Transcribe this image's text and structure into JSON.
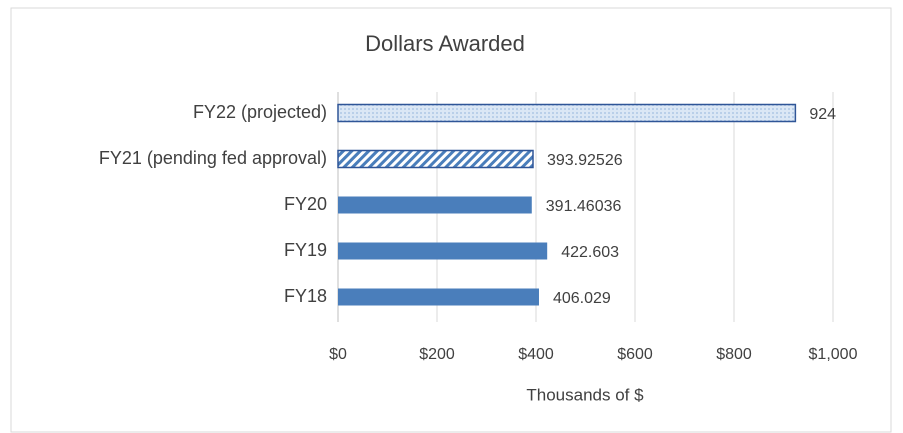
{
  "chart_data": {
    "type": "hbar",
    "title": "Dollars Awarded",
    "categories": [
      "FY22 (projected)",
      "FY21 (pending fed approval)",
      "FY20",
      "FY19",
      "FY18"
    ],
    "values": [
      924,
      393.92526,
      391.46036,
      422.603,
      406.029
    ],
    "color": "#4a7ebb",
    "fills": [
      "dotted",
      "hatched",
      "solid",
      "solid",
      "solid"
    ],
    "xlabel": "Thousands of $",
    "xlim": [
      0,
      1000
    ],
    "xticks": [
      {
        "value": 0,
        "label": "$0"
      },
      {
        "value": 200,
        "label": "$200"
      },
      {
        "value": 400,
        "label": "$400"
      },
      {
        "value": 600,
        "label": "$600"
      },
      {
        "value": 800,
        "label": "$800"
      },
      {
        "value": 1000,
        "label": "$1,000"
      }
    ],
    "grid": true
  }
}
